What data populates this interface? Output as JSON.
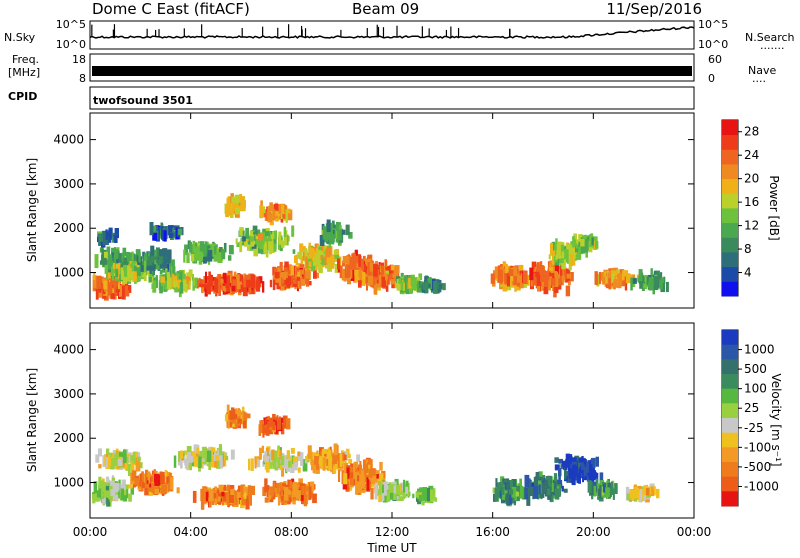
{
  "header": {
    "station": "Dome C East (fitACF)",
    "beam": "Beam 09",
    "date": "11/Sep/2016"
  },
  "noise_panel": {
    "left_label": "N.Sky",
    "right_label": "N.Search",
    "tick_top": "10^5",
    "tick_bottom": "10^0",
    "right_dots": "......."
  },
  "freq_panel": {
    "label_line1": "Freq.",
    "label_line2": "[MHz]",
    "left_ticks": [
      "18",
      "8"
    ],
    "right_ticks": [
      "60",
      "0"
    ],
    "right_label": "Nave",
    "right_dots": "...."
  },
  "cpid_panel": {
    "label": "CPID",
    "mode": "twofsound 3501"
  },
  "chart_data": [
    {
      "type": "heatmap",
      "name": "power",
      "ylabel": "Slant Range [km]",
      "xlabel": "",
      "y_ticks": [
        "1000",
        "2000",
        "3000",
        "4000"
      ],
      "ylim": [
        200,
        4600
      ],
      "x_tick_labels": [],
      "colorbar": {
        "label": "Power [dB]",
        "tick_labels": [
          "4",
          "8",
          "12",
          "16",
          "20",
          "24",
          "28"
        ],
        "range": [
          0,
          30
        ],
        "colors": [
          "#1010ee",
          "#1c4aa8",
          "#2e6e7a",
          "#3a8a5c",
          "#4aa84e",
          "#6cc23c",
          "#bcd02c",
          "#f0b018",
          "#ef8a22",
          "#ee6420",
          "#ee3c1a",
          "#e81414"
        ]
      },
      "blobs": [
        {
          "t": 0.8,
          "r": 700,
          "st": 0.8,
          "sr": 260,
          "v": 24,
          "n": 140
        },
        {
          "t": 1.0,
          "r": 1250,
          "st": 1.0,
          "sr": 250,
          "v": 10,
          "n": 90
        },
        {
          "t": 1.6,
          "r": 1000,
          "st": 1.0,
          "sr": 200,
          "v": 14,
          "n": 110
        },
        {
          "t": 0.6,
          "r": 1800,
          "st": 0.5,
          "sr": 130,
          "v": 6,
          "n": 35
        },
        {
          "t": 2.5,
          "r": 1250,
          "st": 0.9,
          "sr": 220,
          "v": 8,
          "n": 90
        },
        {
          "t": 3.3,
          "r": 800,
          "st": 1.0,
          "sr": 220,
          "v": 14,
          "n": 110
        },
        {
          "t": 3.0,
          "r": 1900,
          "st": 0.8,
          "sr": 150,
          "v": 6,
          "n": 50
        },
        {
          "t": 4.5,
          "r": 1450,
          "st": 0.9,
          "sr": 220,
          "v": 12,
          "n": 100
        },
        {
          "t": 5.5,
          "r": 750,
          "st": 1.4,
          "sr": 200,
          "v": 26,
          "n": 190
        },
        {
          "t": 5.7,
          "r": 2500,
          "st": 0.5,
          "sr": 180,
          "v": 18,
          "n": 60
        },
        {
          "t": 7.3,
          "r": 2350,
          "st": 0.7,
          "sr": 170,
          "v": 22,
          "n": 70
        },
        {
          "t": 6.8,
          "r": 1700,
          "st": 1.2,
          "sr": 250,
          "v": 14,
          "n": 120
        },
        {
          "t": 8.0,
          "r": 900,
          "st": 1.0,
          "sr": 250,
          "v": 24,
          "n": 140
        },
        {
          "t": 9.0,
          "r": 1350,
          "st": 1.0,
          "sr": 250,
          "v": 18,
          "n": 120
        },
        {
          "t": 9.6,
          "r": 1900,
          "st": 0.8,
          "sr": 200,
          "v": 10,
          "n": 60
        },
        {
          "t": 10.6,
          "r": 1100,
          "st": 0.8,
          "sr": 300,
          "v": 25,
          "n": 150
        },
        {
          "t": 11.5,
          "r": 900,
          "st": 0.9,
          "sr": 280,
          "v": 24,
          "n": 140
        },
        {
          "t": 12.6,
          "r": 750,
          "st": 0.6,
          "sr": 160,
          "v": 14,
          "n": 70
        },
        {
          "t": 13.5,
          "r": 700,
          "st": 0.5,
          "sr": 120,
          "v": 8,
          "n": 40
        },
        {
          "t": 16.6,
          "r": 900,
          "st": 0.7,
          "sr": 260,
          "v": 22,
          "n": 110
        },
        {
          "t": 18.2,
          "r": 900,
          "st": 0.9,
          "sr": 300,
          "v": 24,
          "n": 160
        },
        {
          "t": 18.8,
          "r": 1450,
          "st": 0.7,
          "sr": 250,
          "v": 16,
          "n": 90
        },
        {
          "t": 19.6,
          "r": 1650,
          "st": 0.6,
          "sr": 160,
          "v": 14,
          "n": 60
        },
        {
          "t": 20.8,
          "r": 850,
          "st": 0.8,
          "sr": 150,
          "v": 22,
          "n": 80
        },
        {
          "t": 22.2,
          "r": 800,
          "st": 0.8,
          "sr": 150,
          "v": 10,
          "n": 60
        }
      ]
    },
    {
      "type": "heatmap",
      "name": "velocity",
      "ylabel": "Slant Range [km]",
      "xlabel": "Time UT",
      "y_ticks": [
        "1000",
        "2000",
        "3000",
        "4000"
      ],
      "ylim": [
        200,
        4600
      ],
      "x_tick_labels": [
        "00:00",
        "04:00",
        "08:00",
        "12:00",
        "16:00",
        "20:00",
        "00:00"
      ],
      "x_tick_hours": [
        0,
        4,
        8,
        12,
        16,
        20,
        24
      ],
      "colorbar": {
        "label": "Velocity [m s⁻¹]",
        "tick_labels": [
          "1000",
          "500",
          "100",
          "25",
          "-25",
          "-100",
          "-500",
          "-1000"
        ],
        "colors": [
          "#1a3ac0",
          "#2c56a8",
          "#34706c",
          "#3a8c5e",
          "#56b83e",
          "#98d040",
          "#c8c8c8",
          "#f0c020",
          "#f29a24",
          "#ef7c1c",
          "#ee5c1a",
          "#e81414"
        ]
      },
      "blobs": [
        {
          "t": 0.8,
          "r": 800,
          "st": 0.8,
          "sr": 260,
          "v": 5,
          "n": 120
        },
        {
          "t": 1.2,
          "r": 1500,
          "st": 1.0,
          "sr": 200,
          "v": 6,
          "n": 70
        },
        {
          "t": 2.5,
          "r": 1000,
          "st": 1.0,
          "sr": 250,
          "v": 9,
          "n": 110
        },
        {
          "t": 4.5,
          "r": 1550,
          "st": 1.3,
          "sr": 200,
          "v": 6,
          "n": 110
        },
        {
          "t": 5.3,
          "r": 700,
          "st": 1.3,
          "sr": 200,
          "v": 9,
          "n": 150
        },
        {
          "t": 5.7,
          "r": 2450,
          "st": 0.5,
          "sr": 180,
          "v": 9,
          "n": 55
        },
        {
          "t": 7.2,
          "r": 2300,
          "st": 0.7,
          "sr": 170,
          "v": 10,
          "n": 65
        },
        {
          "t": 7.5,
          "r": 1500,
          "st": 1.2,
          "sr": 250,
          "v": 6,
          "n": 100
        },
        {
          "t": 8.0,
          "r": 800,
          "st": 1.2,
          "sr": 220,
          "v": 9,
          "n": 150
        },
        {
          "t": 9.5,
          "r": 1500,
          "st": 1.0,
          "sr": 260,
          "v": 8,
          "n": 110
        },
        {
          "t": 10.8,
          "r": 1100,
          "st": 1.0,
          "sr": 320,
          "v": 9,
          "n": 150
        },
        {
          "t": 12.0,
          "r": 800,
          "st": 0.8,
          "sr": 200,
          "v": 5,
          "n": 90
        },
        {
          "t": 13.3,
          "r": 700,
          "st": 0.5,
          "sr": 130,
          "v": 4,
          "n": 45
        },
        {
          "t": 16.6,
          "r": 800,
          "st": 0.7,
          "sr": 260,
          "v": 3,
          "n": 100
        },
        {
          "t": 18.0,
          "r": 900,
          "st": 0.8,
          "sr": 260,
          "v": 2,
          "n": 120
        },
        {
          "t": 19.3,
          "r": 1300,
          "st": 0.9,
          "sr": 300,
          "v": 0,
          "n": 130
        },
        {
          "t": 20.3,
          "r": 850,
          "st": 0.6,
          "sr": 180,
          "v": 3,
          "n": 70
        },
        {
          "t": 21.8,
          "r": 750,
          "st": 0.8,
          "sr": 150,
          "v": 7,
          "n": 55
        }
      ]
    }
  ]
}
